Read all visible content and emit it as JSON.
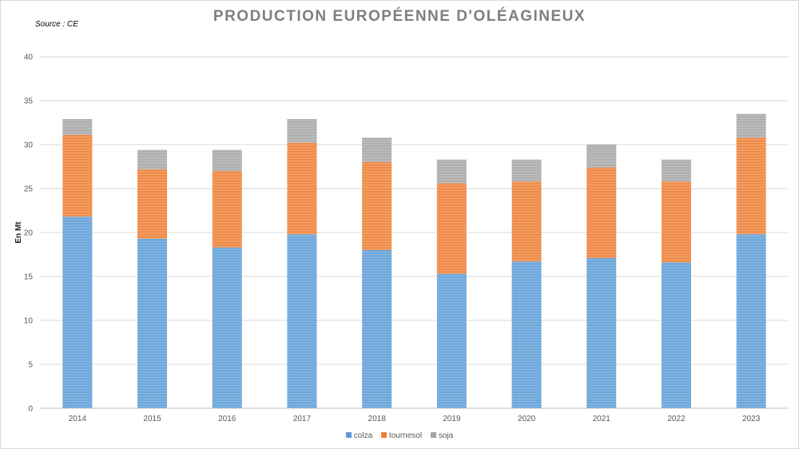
{
  "title": "PRODUCTION EUROPÉENNE D'OLÉAGINEUX",
  "source": "Source : CE",
  "chart_data": {
    "type": "bar",
    "stacked": true,
    "title": "PRODUCTION EUROPÉENNE D'OLÉAGINEUX",
    "xlabel": "",
    "ylabel": "En Mt",
    "ylim": [
      0,
      40
    ],
    "yticks": [
      0,
      5,
      10,
      15,
      20,
      25,
      30,
      35,
      40
    ],
    "grid": true,
    "legend_position": "bottom",
    "categories": [
      "2014",
      "2015",
      "2016",
      "2017",
      "2018",
      "2019",
      "2020",
      "2021",
      "2022",
      "2023"
    ],
    "series": [
      {
        "name": "colza",
        "color": "#5b9bd5",
        "values": [
          21.8,
          19.3,
          18.3,
          19.8,
          18.0,
          15.3,
          16.7,
          17.1,
          16.6,
          19.8
        ]
      },
      {
        "name": "tournesol",
        "color": "#ed7d31",
        "values": [
          9.3,
          7.9,
          8.7,
          10.4,
          10.0,
          10.3,
          9.1,
          10.3,
          9.2,
          11.0
        ]
      },
      {
        "name": "soja",
        "color": "#a5a5a5",
        "values": [
          1.8,
          2.2,
          2.4,
          2.7,
          2.8,
          2.7,
          2.5,
          2.6,
          2.5,
          2.7
        ]
      }
    ]
  }
}
